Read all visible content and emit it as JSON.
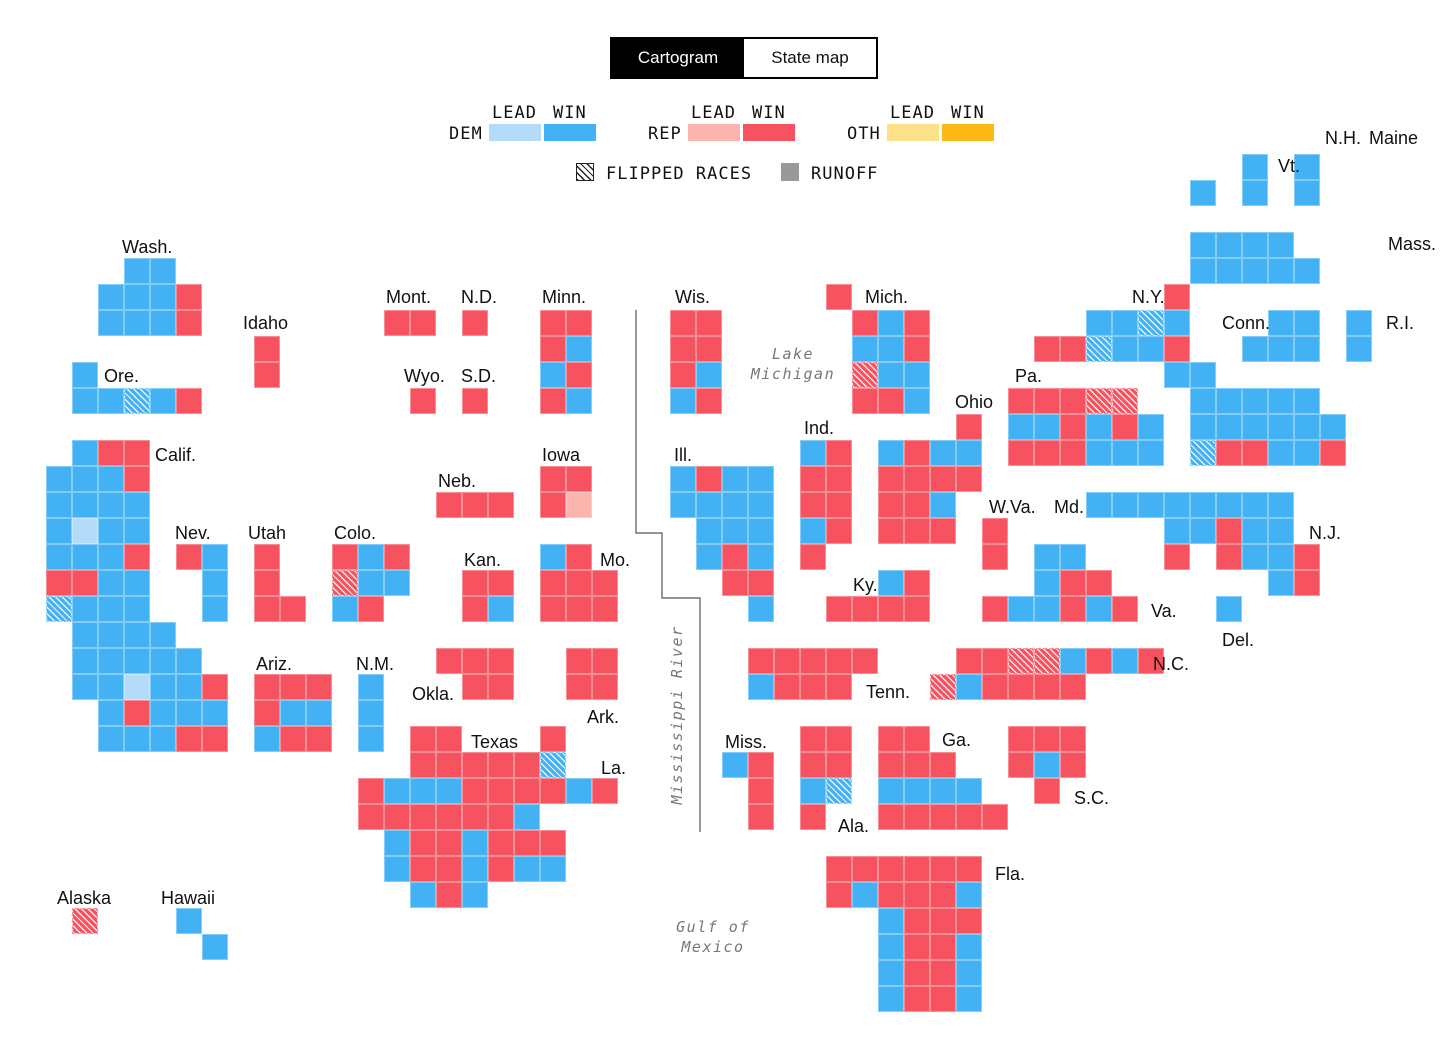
{
  "view_toggle": {
    "options": [
      "Cartogram",
      "State map"
    ],
    "active": "Cartogram"
  },
  "legend": {
    "lead_label": "LEAD",
    "win_label": "WIN",
    "groups": [
      {
        "party": "DEM",
        "lead_color": "#b4dcfa",
        "win_color": "#43b2f5"
      },
      {
        "party": "REP",
        "lead_color": "#fbb4ae",
        "win_color": "#f7525f"
      },
      {
        "party": "OTH",
        "lead_color": "#fde08a",
        "win_color": "#fdba16"
      }
    ],
    "flipped_label": "FLIPPED RACES",
    "runoff_label": "RUNOFF",
    "runoff_color": "#999999"
  },
  "geo_labels": {
    "lake_michigan": "Lake\nMichigan",
    "mississippi": "Mississippi River",
    "gulf": "Gulf of\nMexico"
  },
  "state_labels": [
    "Wash.",
    "Idaho",
    "Mont.",
    "N.D.",
    "Minn.",
    "Wis.",
    "Mich.",
    "N.Y.",
    "N.H.",
    "Maine",
    "Vt.",
    "Mass.",
    "Conn.",
    "R.I.",
    "Ore.",
    "Wyo.",
    "S.D.",
    "Lake",
    "Pa.",
    "Ohio",
    "Ind.",
    "Calif.",
    "Iowa",
    "Ill.",
    "Neb.",
    "W.Va.",
    "Md.",
    "N.J.",
    "Nev.",
    "Utah",
    "Colo.",
    "Kan.",
    "Mo.",
    "Ky.",
    "Va.",
    "Del.",
    "Ariz.",
    "N.M.",
    "Okla.",
    "Tenn.",
    "N.C.",
    "Ark.",
    "Texas",
    "Miss.",
    "Ga.",
    "La.",
    "S.C.",
    "Ala.",
    "Fla.",
    "Alaska",
    "Hawaii"
  ],
  "districts": {
    "Wash.": [
      "D",
      "D",
      "D",
      "D",
      "D",
      "R",
      "D",
      "D",
      "D",
      "R"
    ],
    "Ore.": [
      "D",
      "D",
      "D",
      "Dh",
      "D",
      "R"
    ],
    "Calif.": [
      "D",
      "R",
      "R",
      "D",
      "D",
      "D",
      "R",
      "D",
      "D",
      "D",
      "D",
      "D",
      "Dl",
      "D",
      "D",
      "D",
      "D",
      "D",
      "R",
      "R",
      "R",
      "D",
      "D",
      "Dh",
      "D",
      "D",
      "D",
      "D",
      "D",
      "D",
      "D",
      "D",
      "D",
      "D",
      "D",
      "D",
      "D",
      "D",
      "Dl",
      "D",
      "D",
      "R",
      "D",
      "R",
      "D",
      "D",
      "D",
      "D",
      "D",
      "D",
      "R"
    ],
    "Idaho": [
      "R",
      "R"
    ],
    "Mont.": [
      "R",
      "R"
    ],
    "N.D.": [
      "R"
    ],
    "Wyo.": [
      "R"
    ],
    "S.D.": [
      "R"
    ],
    "Minn.": [
      "R",
      "R",
      "R",
      "D",
      "D",
      "R",
      "R",
      "D"
    ],
    "Wis.": [
      "R",
      "R",
      "R",
      "R",
      "R",
      "D",
      "D",
      "R"
    ],
    "Mich.": [
      "R",
      "R",
      "D",
      "R",
      "D",
      "D",
      "R",
      "Rh",
      "D",
      "D",
      "R",
      "R",
      "D"
    ],
    "N.Y.": [
      "R",
      "D",
      "D",
      "Dh",
      "D",
      "R",
      "R",
      "Dh",
      "D",
      "D",
      "R",
      "D",
      "D",
      "D",
      "D",
      "D",
      "D",
      "D",
      "D",
      "D",
      "D",
      "D",
      "D",
      "Dh",
      "R",
      "R",
      "D",
      "D",
      "D",
      "R"
    ],
    "Vt.": [
      "D"
    ],
    "N.H.": [
      "D",
      "D"
    ],
    "Maine": [
      "D",
      "D"
    ],
    "Mass.": [
      "D",
      "D",
      "D",
      "D",
      "D",
      "D",
      "D",
      "D",
      "D"
    ],
    "Conn.": [
      "D",
      "D",
      "D",
      "D",
      "D"
    ],
    "R.I.": [
      "D",
      "D"
    ],
    "Pa.": [
      "R",
      "R",
      "R",
      "Rh",
      "Rh",
      "D",
      "D",
      "R",
      "D",
      "R",
      "D",
      "R",
      "R",
      "R",
      "D",
      "D",
      "D"
    ],
    "Ohio": [
      "R",
      "D",
      "R",
      "D",
      "D",
      "R",
      "R",
      "R",
      "R",
      "R",
      "R",
      "D",
      "R",
      "R",
      "R"
    ],
    "Ind.": [
      "D",
      "R",
      "R",
      "R",
      "R",
      "R",
      "D",
      "R",
      "R"
    ],
    "Ill.": [
      "D",
      "R",
      "D",
      "D",
      "D",
      "D",
      "D",
      "D",
      "D",
      "D",
      "D",
      "D",
      "R",
      "D",
      "R",
      "R",
      "D"
    ],
    "Iowa": [
      "R",
      "R",
      "R",
      "Rl"
    ],
    "Neb.": [
      "R",
      "R",
      "R"
    ],
    "Nev.": [
      "R",
      "D",
      "D",
      "D"
    ],
    "Utah": [
      "R",
      "R",
      "R",
      "R"
    ],
    "Colo.": [
      "R",
      "D",
      "R",
      "Rh",
      "D",
      "D",
      "D",
      "R"
    ],
    "Kan.": [
      "R",
      "R",
      "R",
      "D"
    ],
    "Mo.": [
      "D",
      "R",
      "R",
      "R",
      "R",
      "R",
      "R",
      "R"
    ],
    "Ky.": [
      "D",
      "R",
      "R",
      "R",
      "R",
      "R"
    ],
    "W.Va.": [
      "R",
      "R"
    ],
    "Md.": [
      "D",
      "D",
      "D",
      "D",
      "D",
      "D",
      "D",
      "R"
    ],
    "Va.": [
      "D",
      "D",
      "D",
      "R",
      "R",
      "R",
      "D",
      "D",
      "R",
      "D",
      "R"
    ],
    "N.J.": [
      "D",
      "D",
      "D",
      "R",
      "D",
      "D",
      "R",
      "D",
      "D",
      "R",
      "D",
      "R"
    ],
    "Del.": [
      "D"
    ],
    "Ariz.": [
      "R",
      "R",
      "R",
      "R",
      "D",
      "D",
      "D",
      "R",
      "R"
    ],
    "N.M.": [
      "D",
      "D",
      "D"
    ],
    "Okla.": [
      "R",
      "R",
      "R",
      "R",
      "R"
    ],
    "Ark.": [
      "R",
      "R",
      "R",
      "R"
    ],
    "Tenn.": [
      "R",
      "R",
      "R",
      "R",
      "R",
      "D",
      "R",
      "R",
      "R"
    ],
    "N.C.": [
      "R",
      "R",
      "Rh",
      "Rh",
      "D",
      "R",
      "D",
      "R",
      "Rh",
      "D",
      "R",
      "R",
      "R",
      "R"
    ],
    "Texas": [
      "R",
      "R",
      "R",
      "R",
      "R",
      "R",
      "R",
      "R",
      "D",
      "D",
      "D",
      "R",
      "R",
      "R",
      "R",
      "R",
      "R",
      "R",
      "R",
      "R",
      "D",
      "D",
      "R",
      "R",
      "D",
      "R",
      "R",
      "R",
      "D",
      "R",
      "R",
      "D",
      "R",
      "D",
      "D",
      "D",
      "R",
      "D"
    ],
    "La.": [
      "R",
      "Dh",
      "R",
      "D",
      "R"
    ],
    "Miss.": [
      "D",
      "R",
      "R",
      "R"
    ],
    "Ala.": [
      "R",
      "R",
      "R",
      "R",
      "D",
      "Dh",
      "R"
    ],
    "Ga.": [
      "R",
      "R",
      "R",
      "R",
      "R",
      "D",
      "D",
      "D",
      "D",
      "R",
      "R",
      "R",
      "R",
      "R"
    ],
    "S.C.": [
      "R",
      "R",
      "R",
      "R",
      "D",
      "R",
      "R"
    ],
    "Fla.": [
      "R",
      "R",
      "R",
      "R",
      "R",
      "R",
      "R",
      "D",
      "R",
      "R",
      "R",
      "D",
      "D",
      "R",
      "R",
      "R",
      "D",
      "R",
      "R",
      "D",
      "D",
      "R",
      "R",
      "D",
      "D",
      "R",
      "R",
      "D"
    ],
    "Alaska": [
      "Rh"
    ],
    "Hawaii": [
      "D",
      "D"
    ]
  }
}
